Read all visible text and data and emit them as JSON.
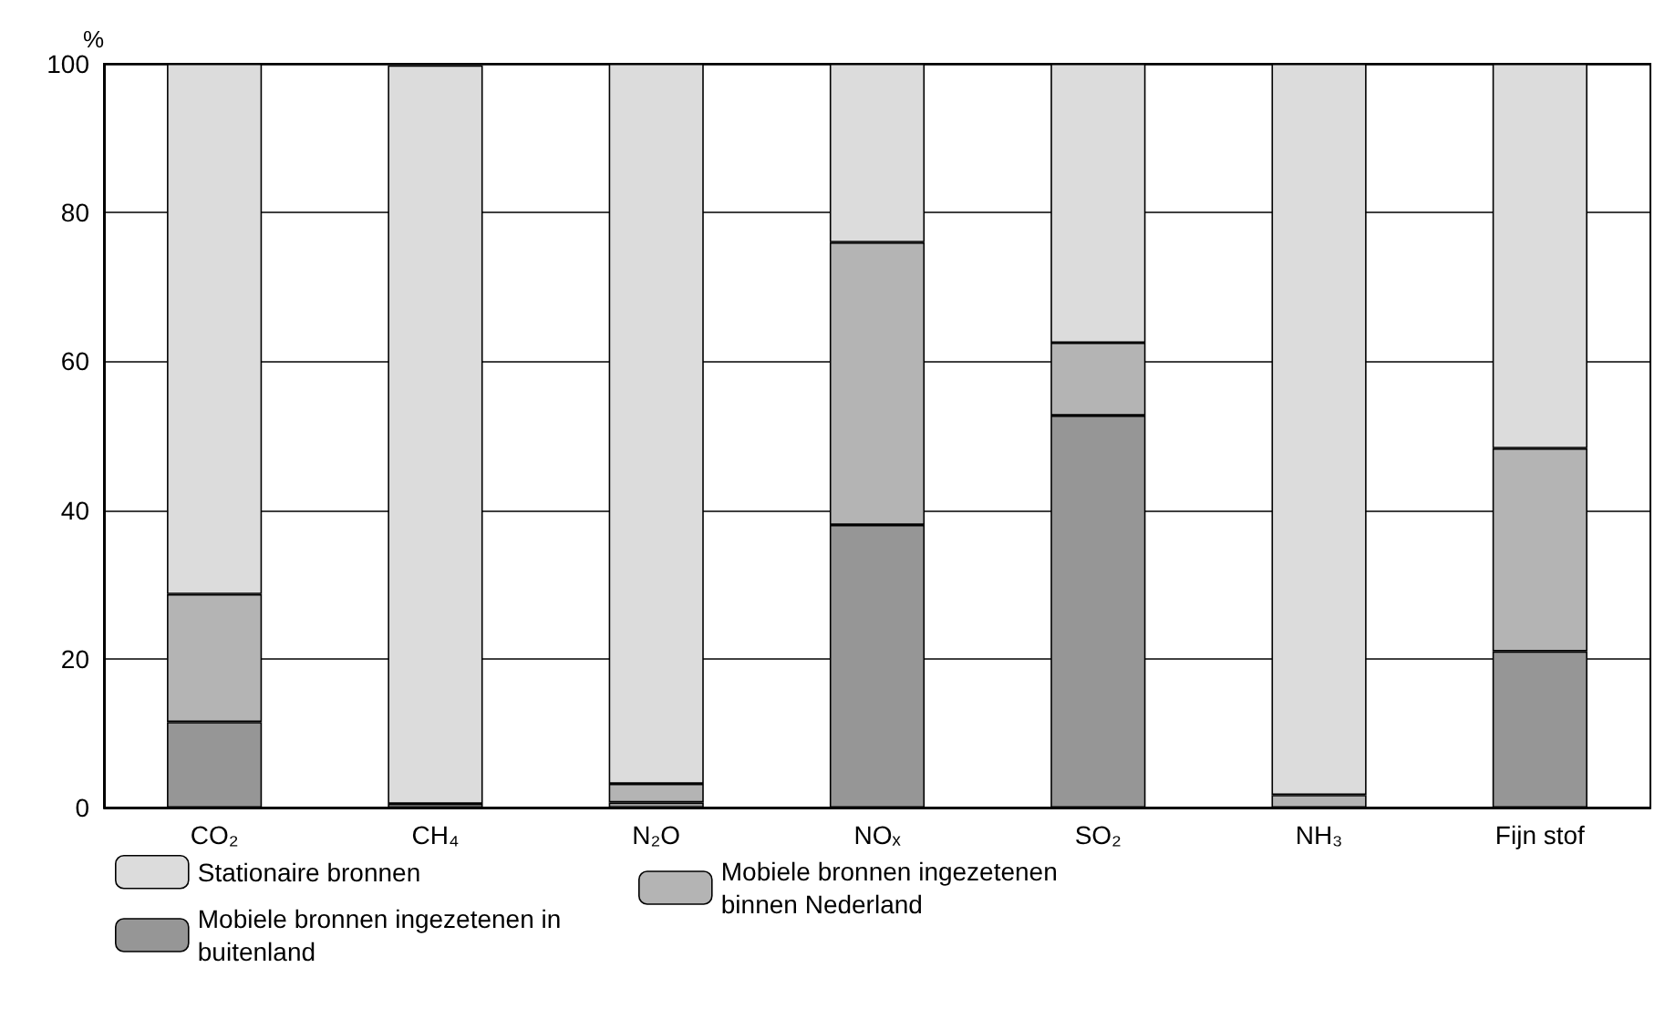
{
  "chart_data": {
    "type": "bar",
    "stacked": true,
    "ylabel": "%",
    "categories": [
      "CO₂",
      "CH₄",
      "N₂O",
      "NOₓ",
      "SO₂",
      "NH₃",
      "Fijn stof"
    ],
    "series": [
      {
        "name": "Mobiele bronnen ingezetenen in buitenland",
        "color": "#969696",
        "values": [
          11.5,
          null,
          0.7,
          38,
          52.7,
          0,
          21
        ]
      },
      {
        "name": "Mobiele bronnen ingezetenen binnen Nederland",
        "color": "#b4b4b4",
        "values": [
          17.2,
          0.5,
          2.5,
          38,
          9.8,
          1.7,
          27.3
        ]
      },
      {
        "name": "Stationaire bronnen",
        "color": "#dcdcdc",
        "values": [
          71.3,
          99.3,
          96.8,
          24,
          37.5,
          98.3,
          51.7
        ]
      }
    ],
    "ylim": [
      0,
      100
    ],
    "yticks": [
      0,
      20,
      40,
      60,
      80,
      100
    ],
    "grid": "y",
    "legend": "bottom"
  }
}
